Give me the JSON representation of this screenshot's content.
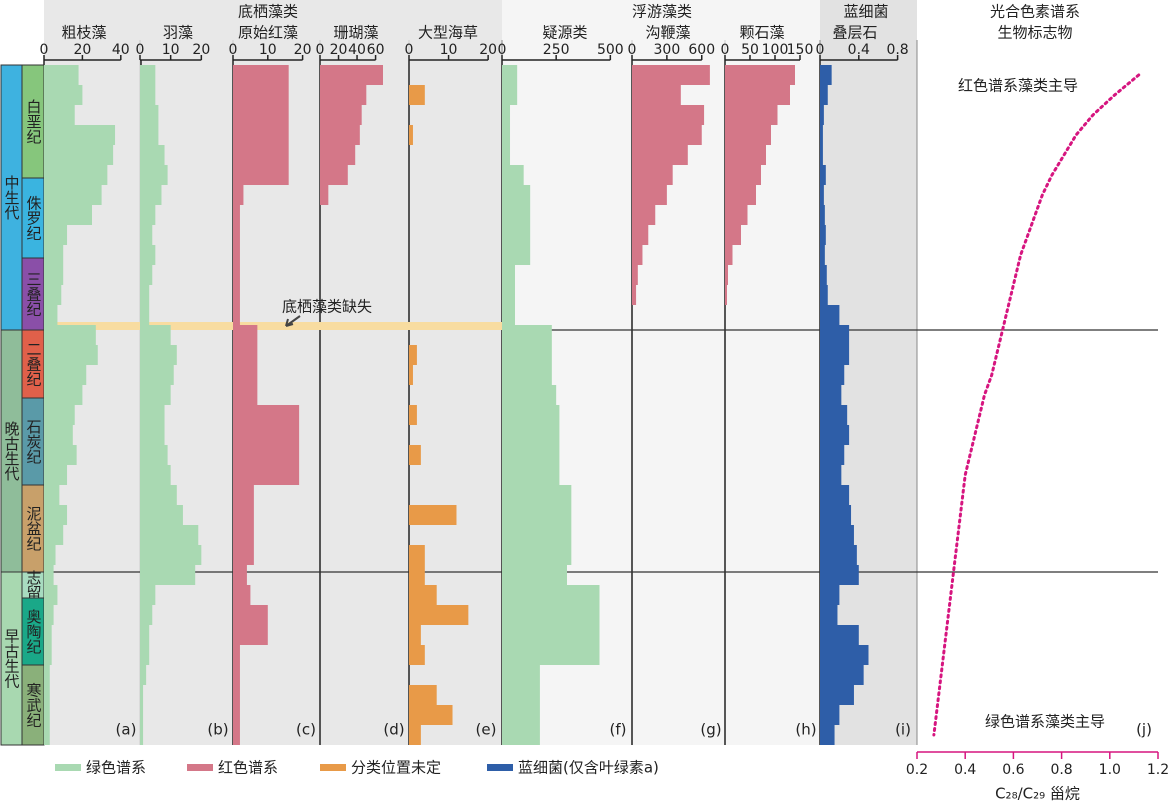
{
  "chart_data": [
    {
      "type": "hbar",
      "title": "粗枝藻",
      "label": "(a)",
      "color": "#a9d9b2",
      "xlim": [
        0,
        50
      ],
      "xticks": [
        0,
        20,
        40
      ],
      "values": [
        18,
        20,
        16,
        37,
        36,
        33,
        30,
        25,
        12,
        10,
        10,
        9,
        7,
        27,
        28,
        22,
        20,
        16,
        15,
        17,
        12,
        8,
        12,
        10,
        6,
        5,
        7,
        5,
        4,
        4,
        3,
        3,
        3,
        3
      ]
    },
    {
      "type": "hbar",
      "title": "羽藻",
      "label": "(b)",
      "color": "#a9d9b2",
      "xlim": [
        0,
        30
      ],
      "xticks": [
        0,
        10,
        20
      ],
      "values": [
        5,
        5,
        6,
        6,
        8,
        9,
        7,
        5,
        4,
        5,
        4,
        3,
        3,
        10,
        12,
        11,
        10,
        8,
        8,
        9,
        10,
        12,
        14,
        19,
        20,
        18,
        5,
        4,
        3,
        3,
        2,
        1,
        1,
        1
      ]
    },
    {
      "type": "hbar",
      "title": "原始红藻",
      "label": "(c)",
      "color": "#d47788",
      "xlim": [
        0,
        25
      ],
      "xticks": [
        0,
        10,
        20
      ],
      "values": [
        16,
        16,
        16,
        16,
        16,
        16,
        3,
        2,
        2,
        2,
        2,
        2,
        2,
        7,
        7,
        7,
        7,
        19,
        19,
        19,
        19,
        6,
        6,
        6,
        6,
        4,
        5,
        10,
        10,
        2,
        2,
        2,
        2,
        2
      ]
    },
    {
      "type": "hbar",
      "title": "珊瑚藻",
      "label": "(d)",
      "color": "#d47788",
      "xlim": [
        0,
        95
      ],
      "xticks": [
        0,
        20,
        40,
        60
      ],
      "values": [
        68,
        50,
        45,
        43,
        38,
        30,
        9,
        null,
        null,
        null,
        null,
        null,
        null,
        null,
        null,
        null,
        null,
        null,
        null,
        null,
        null,
        null,
        null,
        null,
        null,
        null,
        null,
        null,
        null,
        null,
        null,
        null,
        null,
        null
      ]
    },
    {
      "type": "hbar",
      "title": "大型海草",
      "label": "(e)",
      "color": "#e89a48",
      "xlim": [
        0,
        23
      ],
      "xticks": [
        0,
        10,
        20
      ],
      "values": [
        null,
        4,
        null,
        1,
        null,
        null,
        null,
        null,
        null,
        null,
        null,
        null,
        null,
        null,
        2,
        1,
        null,
        2,
        null,
        3,
        null,
        null,
        12,
        null,
        4,
        4,
        7,
        15,
        3,
        4,
        null,
        7,
        11,
        3
      ]
    },
    {
      "type": "hbar",
      "title": "疑源类",
      "label": "(f)",
      "color": "#a9d9b2",
      "xlim": [
        0,
        600
      ],
      "xticks": [
        0,
        250,
        500
      ],
      "values": [
        70,
        70,
        37,
        37,
        37,
        100,
        130,
        130,
        130,
        130,
        60,
        60,
        60,
        230,
        230,
        230,
        250,
        265,
        265,
        265,
        265,
        320,
        320,
        320,
        320,
        300,
        450,
        450,
        450,
        450,
        175,
        175,
        175,
        175
      ]
    },
    {
      "type": "hbar",
      "title": "沟鞭藻",
      "label": "(g)",
      "color": "#d47788",
      "xlim": [
        0,
        800
      ],
      "xticks": [
        0,
        300,
        600
      ],
      "values": [
        670,
        420,
        620,
        600,
        480,
        350,
        300,
        200,
        140,
        90,
        50,
        35
      ]
    },
    {
      "type": "hbar",
      "title": "颗石藻",
      "label": "(h)",
      "color": "#d47788",
      "xlim": [
        0,
        190
      ],
      "xticks": [
        0,
        50,
        100,
        150
      ],
      "values": [
        140,
        130,
        105,
        92,
        82,
        72,
        62,
        45,
        32,
        15,
        6,
        4
      ]
    },
    {
      "type": "hbar",
      "title": "叠层石",
      "label": "(i)",
      "color": "#2e5ea8",
      "xlim": [
        0,
        1
      ],
      "xticks": [
        0,
        0.4,
        0.8
      ],
      "values": [
        0.12,
        0.08,
        0.04,
        0.03,
        0.03,
        0.06,
        0.04,
        0.05,
        0.06,
        0.05,
        0.07,
        0.08,
        0.2,
        0.3,
        0.3,
        0.25,
        0.22,
        0.28,
        0.3,
        0.25,
        0.22,
        0.3,
        0.32,
        0.35,
        0.38,
        0.4,
        0.2,
        0.18,
        0.4,
        0.5,
        0.45,
        0.35,
        0.2,
        0.15
      ]
    },
    {
      "type": "line",
      "label": "(j)",
      "xlabel": "C₂₈/C₂₉ 甾烷",
      "color": "#d6157f",
      "xlim": [
        0.2,
        1.2
      ],
      "xticks": [
        0.2,
        0.4,
        0.6,
        0.8,
        {
          "value": 1,
          "label": "1.0"
        },
        1.2
      ],
      "values": [
        1.12,
        1.02,
        0.93,
        0.86,
        0.81,
        0.76,
        0.72,
        0.69,
        0.66,
        0.63,
        0.61,
        0.59,
        0.57,
        0.55,
        0.53,
        0.51,
        0.48,
        0.46,
        0.44,
        0.42,
        0.4,
        0.39,
        0.38,
        0.37,
        0.36,
        0.35,
        0.34,
        0.33,
        0.32,
        0.31,
        0.3,
        0.29,
        0.28,
        0.27
      ]
    }
  ],
  "groups": [
    "底栖藻类",
    "浮游藻类",
    "蓝细菌",
    "光合色素谱系",
    "生物标志物"
  ],
  "eras": [
    "中生代",
    "晚古生代",
    "早古生代"
  ],
  "periods": [
    "白垩纪",
    "侏罗纪",
    "三叠纪",
    "二叠纪",
    "石炭纪",
    "泥盆纪",
    "志留",
    "奥陶纪",
    "寒武纪"
  ],
  "annotations": [
    "底栖藻类缺失",
    "红色谱系藻类主导",
    "绿色谱系藻类主导"
  ],
  "legend": [
    {
      "name": "绿色谱系",
      "color": "#a9d9b2"
    },
    {
      "name": "红色谱系",
      "color": "#d47788"
    },
    {
      "name": "分类位置未定",
      "color": "#e89a48"
    },
    {
      "name": "蓝细菌(仅含叶绿素a)",
      "color": "#2e5ea8"
    }
  ]
}
